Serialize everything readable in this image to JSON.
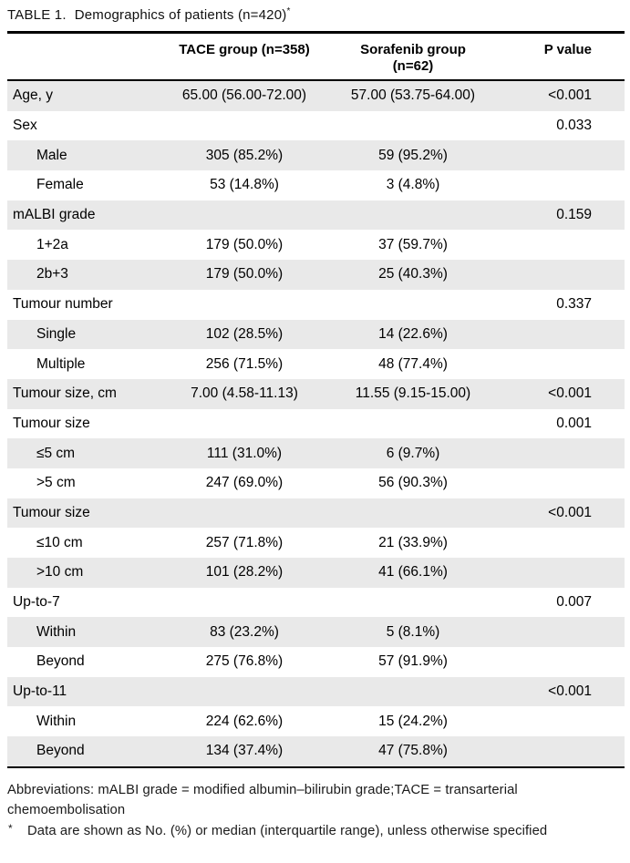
{
  "title": {
    "label": "TABLE 1.",
    "text": "Demographics of patients (n=420)",
    "footnote_marker": "*"
  },
  "table": {
    "columns": {
      "label": "",
      "tace": "TACE group (n=358)",
      "sorafenib": "Sorafenib group (n=62)",
      "p_value": "P value"
    },
    "rows": [
      {
        "label": "Age, y",
        "indent": false,
        "tace": "65.00 (56.00-72.00)",
        "sorafenib": "57.00 (53.75-64.00)",
        "p": "<0.001"
      },
      {
        "label": "Sex",
        "indent": false,
        "tace": "",
        "sorafenib": "",
        "p": "0.033"
      },
      {
        "label": "Male",
        "indent": true,
        "tace": "305 (85.2%)",
        "sorafenib": "59 (95.2%)",
        "p": ""
      },
      {
        "label": "Female",
        "indent": true,
        "tace": "53 (14.8%)",
        "sorafenib": "3 (4.8%)",
        "p": ""
      },
      {
        "label": "mALBI grade",
        "indent": false,
        "tace": "",
        "sorafenib": "",
        "p": "0.159"
      },
      {
        "label": "1+2a",
        "indent": true,
        "tace": "179 (50.0%)",
        "sorafenib": "37 (59.7%)",
        "p": ""
      },
      {
        "label": "2b+3",
        "indent": true,
        "tace": "179 (50.0%)",
        "sorafenib": "25 (40.3%)",
        "p": ""
      },
      {
        "label": "Tumour number",
        "indent": false,
        "tace": "",
        "sorafenib": "",
        "p": "0.337"
      },
      {
        "label": "Single",
        "indent": true,
        "tace": "102 (28.5%)",
        "sorafenib": "14 (22.6%)",
        "p": ""
      },
      {
        "label": "Multiple",
        "indent": true,
        "tace": "256 (71.5%)",
        "sorafenib": "48 (77.4%)",
        "p": ""
      },
      {
        "label": "Tumour size, cm",
        "indent": false,
        "tace": "7.00 (4.58-11.13)",
        "sorafenib": "11.55 (9.15-15.00)",
        "p": "<0.001"
      },
      {
        "label": "Tumour size",
        "indent": false,
        "tace": "",
        "sorafenib": "",
        "p": "0.001"
      },
      {
        "label": "≤5 cm",
        "indent": true,
        "tace": "111 (31.0%)",
        "sorafenib": "6 (9.7%)",
        "p": ""
      },
      {
        "label": ">5 cm",
        "indent": true,
        "tace": "247 (69.0%)",
        "sorafenib": "56 (90.3%)",
        "p": ""
      },
      {
        "label": "Tumour size",
        "indent": false,
        "tace": "",
        "sorafenib": "",
        "p": "<0.001"
      },
      {
        "label": "≤10 cm",
        "indent": true,
        "tace": "257 (71.8%)",
        "sorafenib": "21 (33.9%)",
        "p": ""
      },
      {
        "label": ">10 cm",
        "indent": true,
        "tace": "101 (28.2%)",
        "sorafenib": "41 (66.1%)",
        "p": ""
      },
      {
        "label": "Up-to-7",
        "indent": false,
        "tace": "",
        "sorafenib": "",
        "p": "0.007"
      },
      {
        "label": "Within",
        "indent": true,
        "tace": "83 (23.2%)",
        "sorafenib": "5 (8.1%)",
        "p": ""
      },
      {
        "label": "Beyond",
        "indent": true,
        "tace": "275 (76.8%)",
        "sorafenib": "57 (91.9%)",
        "p": ""
      },
      {
        "label": "Up-to-11",
        "indent": false,
        "tace": "",
        "sorafenib": "",
        "p": "<0.001"
      },
      {
        "label": "Within",
        "indent": true,
        "tace": "224 (62.6%)",
        "sorafenib": "15 (24.2%)",
        "p": ""
      },
      {
        "label": "Beyond",
        "indent": true,
        "tace": "134 (37.4%)",
        "sorafenib": "47 (75.8%)",
        "p": ""
      }
    ]
  },
  "footnotes": {
    "abbreviations": "Abbreviations: mALBI grade = modified albumin–bilirubin grade;TACE = transarterial chemoembolisation",
    "data_note_marker": "*",
    "data_note": "Data are shown as No. (%) or median (interquartile range), unless otherwise specified"
  },
  "colors": {
    "row_shading": "#e9e9e9",
    "rule": "#000000",
    "text": "#000000"
  }
}
